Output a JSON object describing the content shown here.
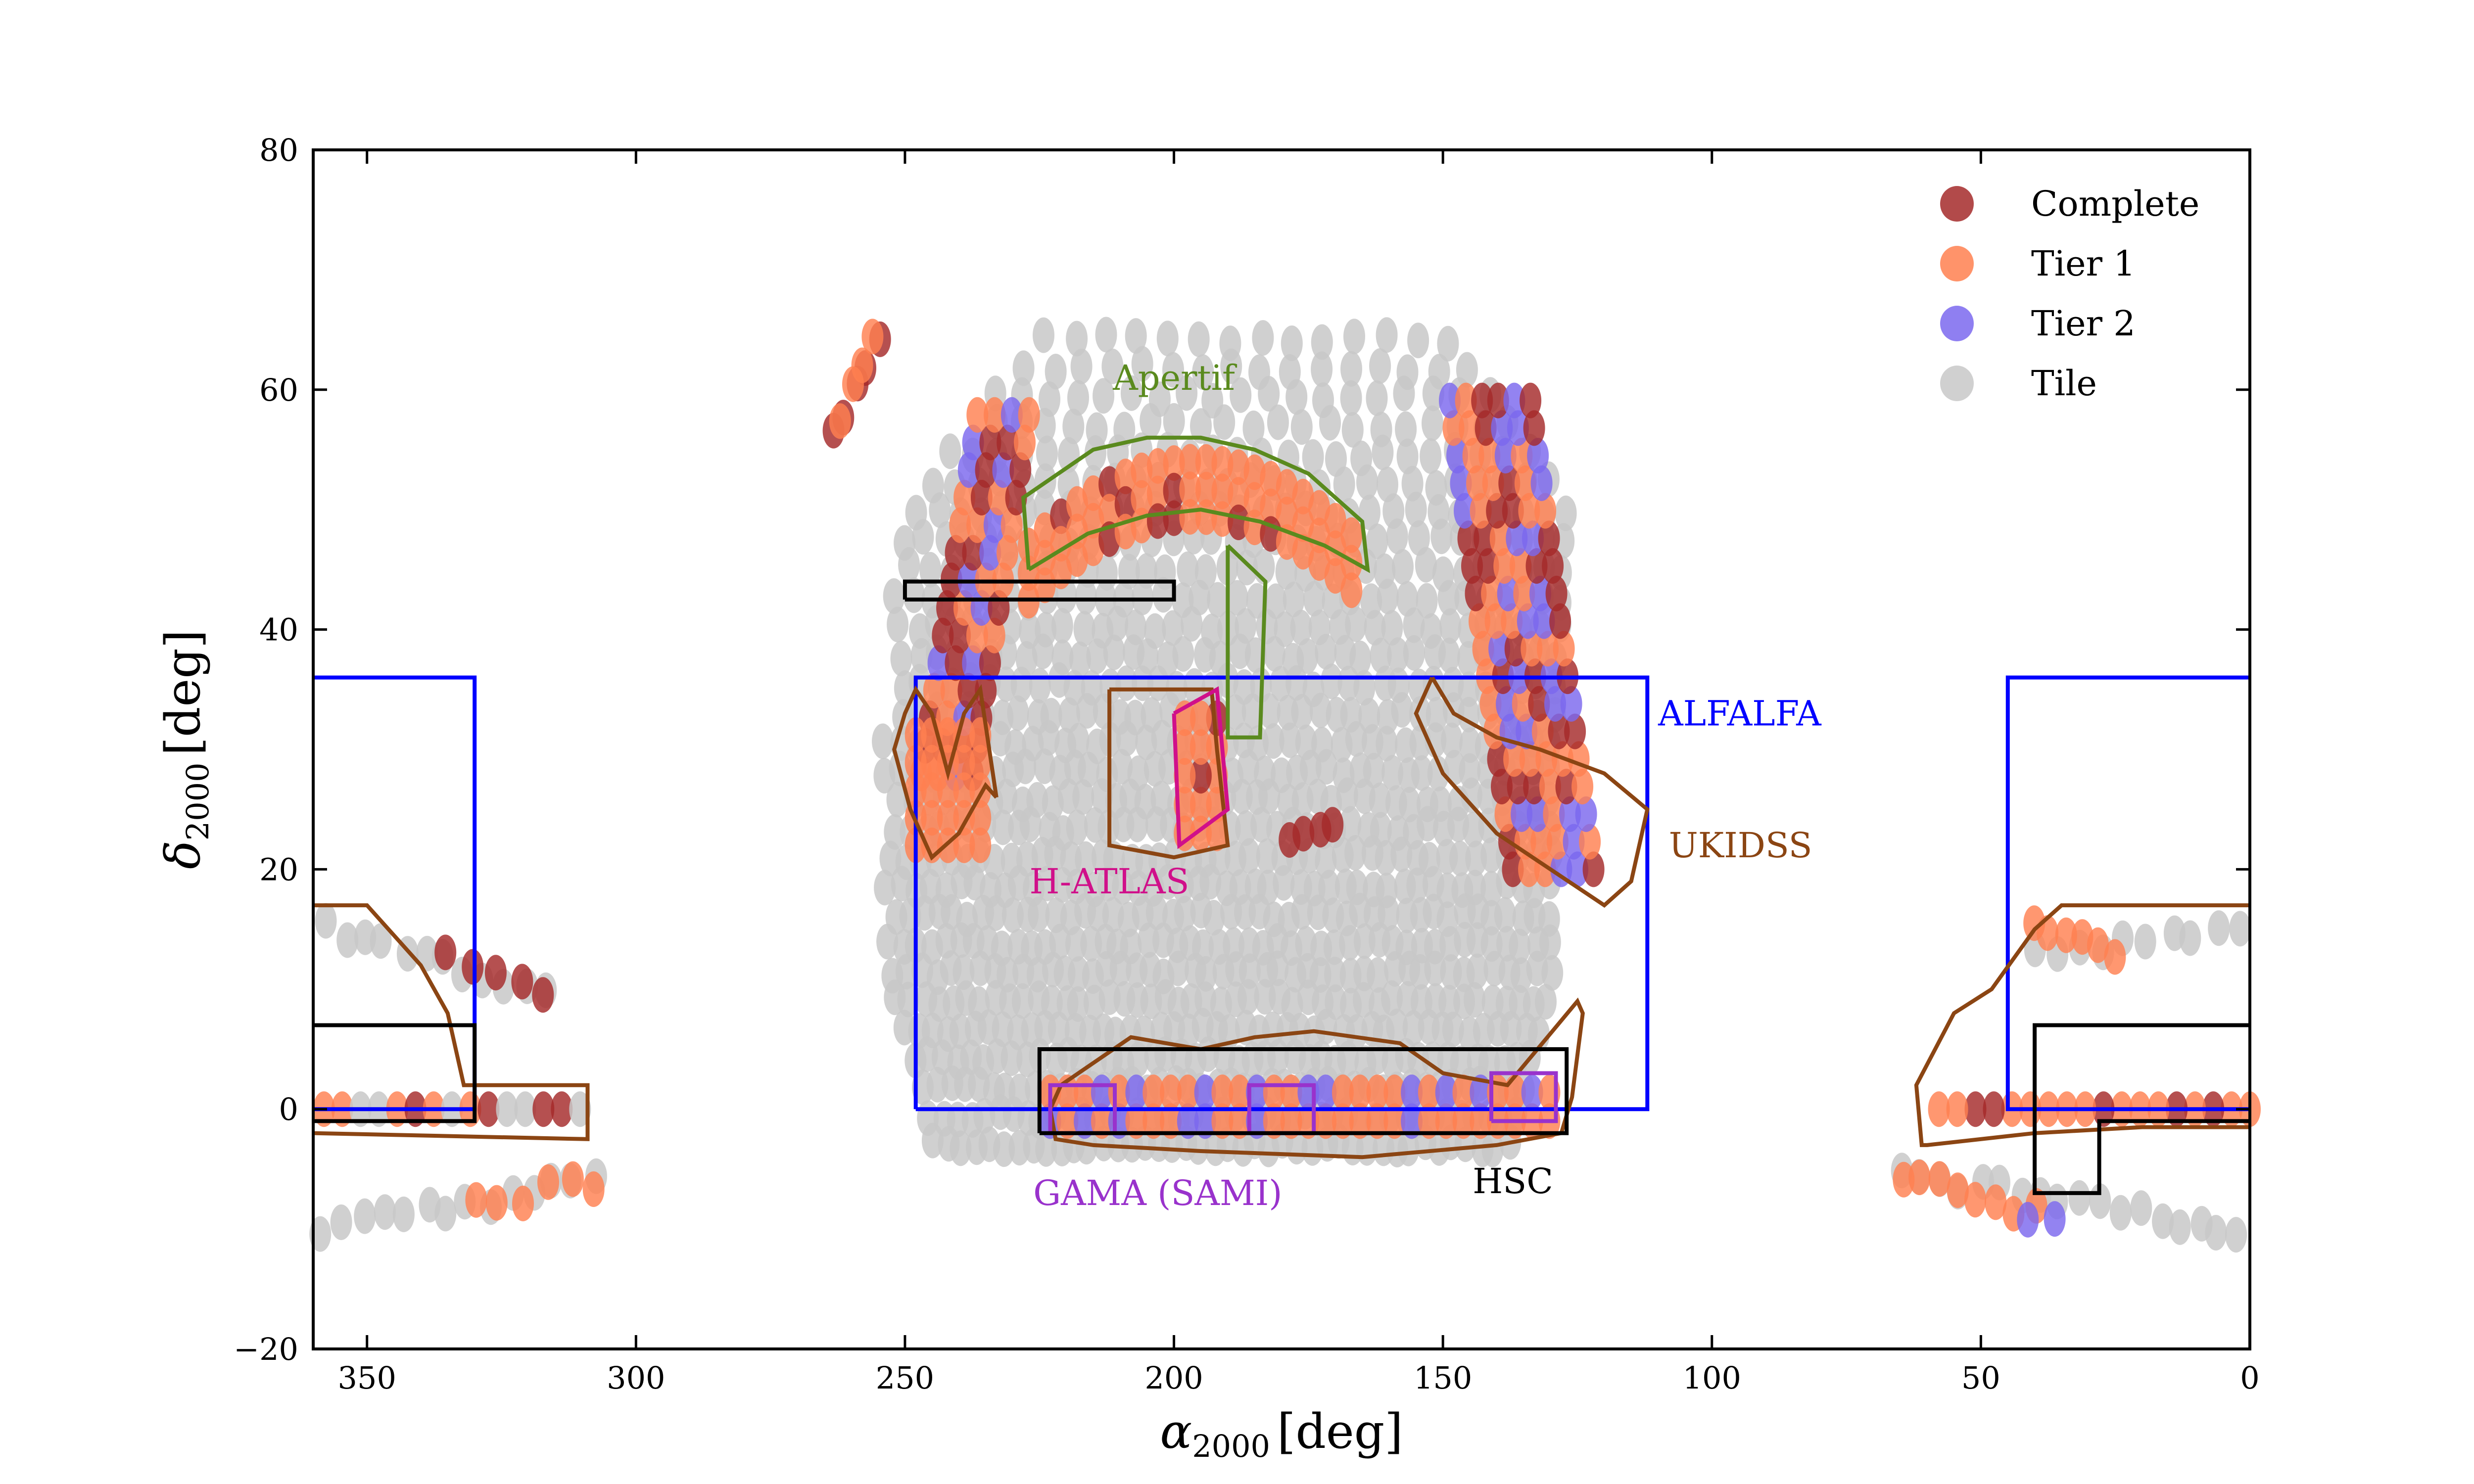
{
  "chart_data": {
    "type": "scatter",
    "xlabel": {
      "base": "α",
      "sub": "2000",
      "unit": "[deg]"
    },
    "ylabel": {
      "base": "δ",
      "sub": "2000",
      "unit": "[deg]"
    },
    "xlim": [
      360,
      0
    ],
    "ylim": [
      -20,
      80
    ],
    "xticks": [
      350,
      300,
      250,
      200,
      150,
      100,
      50,
      0
    ],
    "yticks": [
      80,
      60,
      40,
      20,
      0,
      -20
    ],
    "xtick_labels": [
      "350",
      "300",
      "250",
      "200",
      "150",
      "100",
      "50",
      "0"
    ],
    "ytick_labels": [
      "80",
      "60",
      "40",
      "20",
      "0",
      "−20"
    ],
    "grid": false,
    "legend_position": "top-right",
    "series": [
      {
        "name": "Complete",
        "color": "#a52a2a"
      },
      {
        "name": "Tier 1",
        "color": "#ff8050"
      },
      {
        "name": "Tier 2",
        "color": "#7b68ee"
      },
      {
        "name": "Tile",
        "color": "#c8c8c8"
      }
    ],
    "regions": [
      {
        "name": "ALFALFA",
        "color": "#0000ff",
        "outlines": [
          [
            [
              248,
              0
            ],
            [
              112,
              0
            ],
            [
              112,
              36
            ],
            [
              248,
              36
            ],
            [
              248,
              0
            ]
          ],
          [
            [
              360,
              0
            ],
            [
              330,
              0
            ],
            [
              330,
              36
            ],
            [
              360,
              36
            ]
          ],
          [
            [
              0,
              0
            ],
            [
              45,
              0
            ],
            [
              45,
              36
            ],
            [
              0,
              36
            ]
          ]
        ]
      },
      {
        "name": "UKIDSS",
        "color": "#8b4513",
        "outlines": [
          [
            [
              221,
              2
            ],
            [
              208,
              6
            ],
            [
              195,
              5
            ],
            [
              185,
              6
            ],
            [
              174,
              6.5
            ],
            [
              166,
              6
            ],
            [
              158,
              5.5
            ],
            [
              150,
              3
            ],
            [
              138,
              2
            ],
            [
              125,
              9
            ],
            [
              124,
              8
            ],
            [
              126,
              1
            ],
            [
              128,
              -2
            ],
            [
              140,
              -3
            ],
            [
              165,
              -4
            ],
            [
              195,
              -3.5
            ],
            [
              215,
              -3
            ],
            [
              222,
              -2.5
            ],
            [
              223,
              0
            ],
            [
              221,
              2
            ]
          ],
          [
            [
              233,
              26
            ],
            [
              236,
              35
            ],
            [
              239,
              33
            ],
            [
              242,
              28
            ],
            [
              245,
              33
            ],
            [
              248,
              35
            ],
            [
              250,
              33
            ],
            [
              252,
              30
            ],
            [
              249,
              25
            ],
            [
              245,
              21
            ],
            [
              240,
              23
            ],
            [
              235,
              27
            ],
            [
              233,
              26
            ]
          ],
          [
            [
              212,
              35
            ],
            [
              193,
              35
            ],
            [
              192,
              30
            ],
            [
              190,
              22
            ],
            [
              200,
              21
            ],
            [
              212,
              22
            ],
            [
              212,
              35
            ]
          ],
          [
            [
              152,
              36
            ],
            [
              148,
              33
            ],
            [
              140,
              31
            ],
            [
              132,
              30
            ],
            [
              120,
              28
            ],
            [
              112,
              25
            ],
            [
              115,
              19
            ],
            [
              120,
              17
            ],
            [
              130,
              20
            ],
            [
              140,
              23
            ],
            [
              150,
              28
            ],
            [
              155,
              33
            ],
            [
              152,
              36
            ]
          ],
          [
            [
              360,
              17
            ],
            [
              350,
              17
            ],
            [
              340,
              12
            ],
            [
              335,
              8
            ],
            [
              332,
              2
            ],
            [
              309,
              2
            ],
            [
              309,
              -2.5
            ],
            [
              360,
              -2
            ]
          ],
          [
            [
              0,
              17
            ],
            [
              35,
              17
            ],
            [
              40,
              15
            ],
            [
              48,
              10
            ],
            [
              55,
              8
            ],
            [
              62,
              2
            ],
            [
              61,
              -3
            ],
            [
              60,
              -3
            ],
            [
              40,
              -2
            ],
            [
              20,
              -1.5
            ],
            [
              0,
              -1.5
            ]
          ]
        ]
      },
      {
        "name": "Apertif",
        "color": "#5a8a1e",
        "outlines": [
          [
            [
              227,
              45
            ],
            [
              216,
              48
            ],
            [
              205,
              49.5
            ],
            [
              195,
              50
            ],
            [
              184,
              49
            ],
            [
              172,
              47
            ],
            [
              164,
              45
            ],
            [
              165,
              49
            ],
            [
              175,
              53
            ],
            [
              185,
              55
            ],
            [
              195,
              56
            ],
            [
              205,
              56
            ],
            [
              215,
              55
            ],
            [
              228,
              51
            ],
            [
              227,
              45
            ]
          ],
          [
            [
              190,
              47
            ],
            [
              190,
              31
            ],
            [
              184,
              31
            ],
            [
              183,
              44
            ],
            [
              190,
              47
            ]
          ]
        ]
      },
      {
        "name": "H-ATLAS",
        "color": "#d0108a",
        "outlines": [
          [
            [
              200,
              33
            ],
            [
              192,
              35
            ],
            [
              190,
              25
            ],
            [
              199,
              22
            ],
            [
              200,
              33
            ]
          ]
        ]
      },
      {
        "name": "GAMA (SAMI)",
        "color": "#9932cc",
        "outlines": [
          [
            [
              223,
              -2
            ],
            [
              211,
              -2
            ],
            [
              211,
              2
            ],
            [
              223,
              2
            ],
            [
              223,
              -2
            ]
          ],
          [
            [
              186,
              -2
            ],
            [
              174,
              -2
            ],
            [
              174,
              2
            ],
            [
              186,
              2
            ],
            [
              186,
              -2
            ]
          ],
          [
            [
              141,
              -1
            ],
            [
              129,
              -1
            ],
            [
              129,
              3
            ],
            [
              141,
              3
            ],
            [
              141,
              -1
            ]
          ]
        ]
      },
      {
        "name": "HSC",
        "color": "#000000",
        "outlines": [
          [
            [
              225,
              -2
            ],
            [
              127,
              -2
            ],
            [
              127,
              5
            ],
            [
              225,
              5
            ],
            [
              225,
              -2
            ]
          ],
          [
            [
              250,
              42.5
            ],
            [
              200,
              42.5
            ],
            [
              200,
              44
            ],
            [
              250,
              44
            ],
            [
              250,
              42.5
            ]
          ],
          [
            [
              360,
              7
            ],
            [
              330,
              7
            ],
            [
              330,
              -1
            ],
            [
              360,
              -1
            ]
          ],
          [
            [
              0,
              7
            ],
            [
              40,
              7
            ],
            [
              40,
              -7
            ],
            [
              28,
              -7
            ],
            [
              28,
              -1
            ],
            [
              0,
              -1
            ]
          ]
        ]
      }
    ],
    "annotations": [
      {
        "text": "Apertif",
        "x": 200,
        "y": 60,
        "color": "#5a8a1e"
      },
      {
        "text": "ALFALFA",
        "x": 110,
        "y": 32,
        "color": "#0000ff"
      },
      {
        "text": "UKIDSS",
        "x": 108,
        "y": 21,
        "color": "#8b4513"
      },
      {
        "text": "H-ATLAS",
        "x": 212,
        "y": 18,
        "color": "#d0108a"
      },
      {
        "text": "GAMA (SAMI)",
        "x": 203,
        "y": -8,
        "color": "#9932cc"
      },
      {
        "text": "HSC",
        "x": 137,
        "y": -7,
        "color": "#000000"
      }
    ]
  }
}
